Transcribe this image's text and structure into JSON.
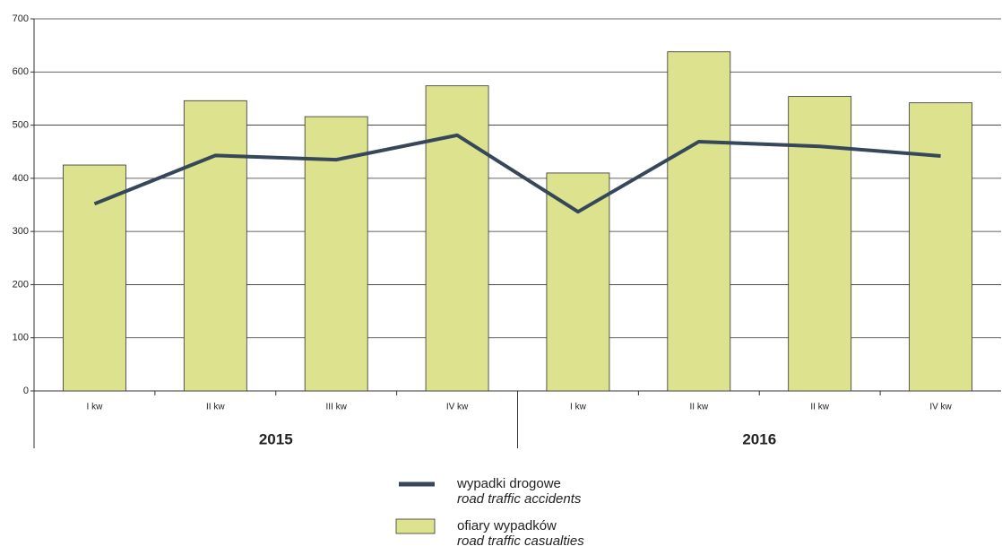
{
  "chart_data": {
    "type": "bar-line",
    "categories": [
      "I kw",
      "II kw",
      "III kw",
      "IV kw",
      "I kw",
      "II kw",
      "II kw",
      "IV kw"
    ],
    "groups": [
      "2015",
      "2016"
    ],
    "series": [
      {
        "name": "wypadki drogowe",
        "name_en": "road traffic accidents",
        "kind": "line",
        "color": "#36475a",
        "values": [
          352,
          443,
          435,
          481,
          337,
          469,
          460,
          442
        ]
      },
      {
        "name": "ofiary wypadków",
        "name_en": "road traffic casualties",
        "kind": "bar",
        "color": "#dde28f",
        "values": [
          425,
          546,
          516,
          574,
          410,
          638,
          554,
          542
        ]
      }
    ],
    "ylim": [
      0,
      700
    ],
    "yticks": [
      0,
      100,
      200,
      300,
      400,
      500,
      600,
      700
    ],
    "grid": true
  }
}
